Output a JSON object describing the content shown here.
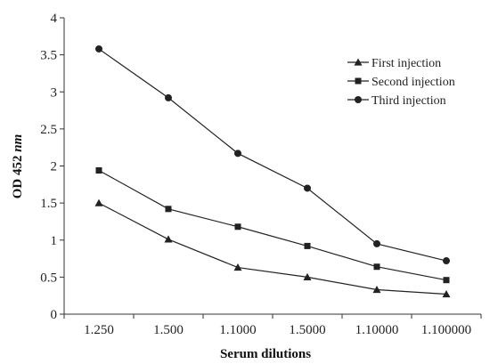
{
  "chart_data": {
    "type": "line",
    "categories": [
      "1.250",
      "1.500",
      "1.1000",
      "1.5000",
      "1.10000",
      "1.100000"
    ],
    "series": [
      {
        "name": "First injection",
        "marker": "triangle",
        "values": [
          1.5,
          1.01,
          0.63,
          0.5,
          0.33,
          0.27
        ]
      },
      {
        "name": "Second injection",
        "marker": "square",
        "values": [
          1.94,
          1.42,
          1.18,
          0.92,
          0.64,
          0.46
        ]
      },
      {
        "name": "Third injection",
        "marker": "circle",
        "values": [
          3.58,
          2.92,
          2.17,
          1.7,
          0.95,
          0.72
        ]
      }
    ],
    "yticks": [
      "0",
      "0.5",
      "1",
      "1.5",
      "2",
      "2.5",
      "3",
      "3.5",
      "4"
    ],
    "ylim": [
      0,
      4
    ],
    "ylabel_main": "OD 452 ",
    "ylabel_unit": "nm",
    "xlabel": "Serum dilutions",
    "grid": false,
    "legend_position": "top-right",
    "line_color": "#222222"
  }
}
